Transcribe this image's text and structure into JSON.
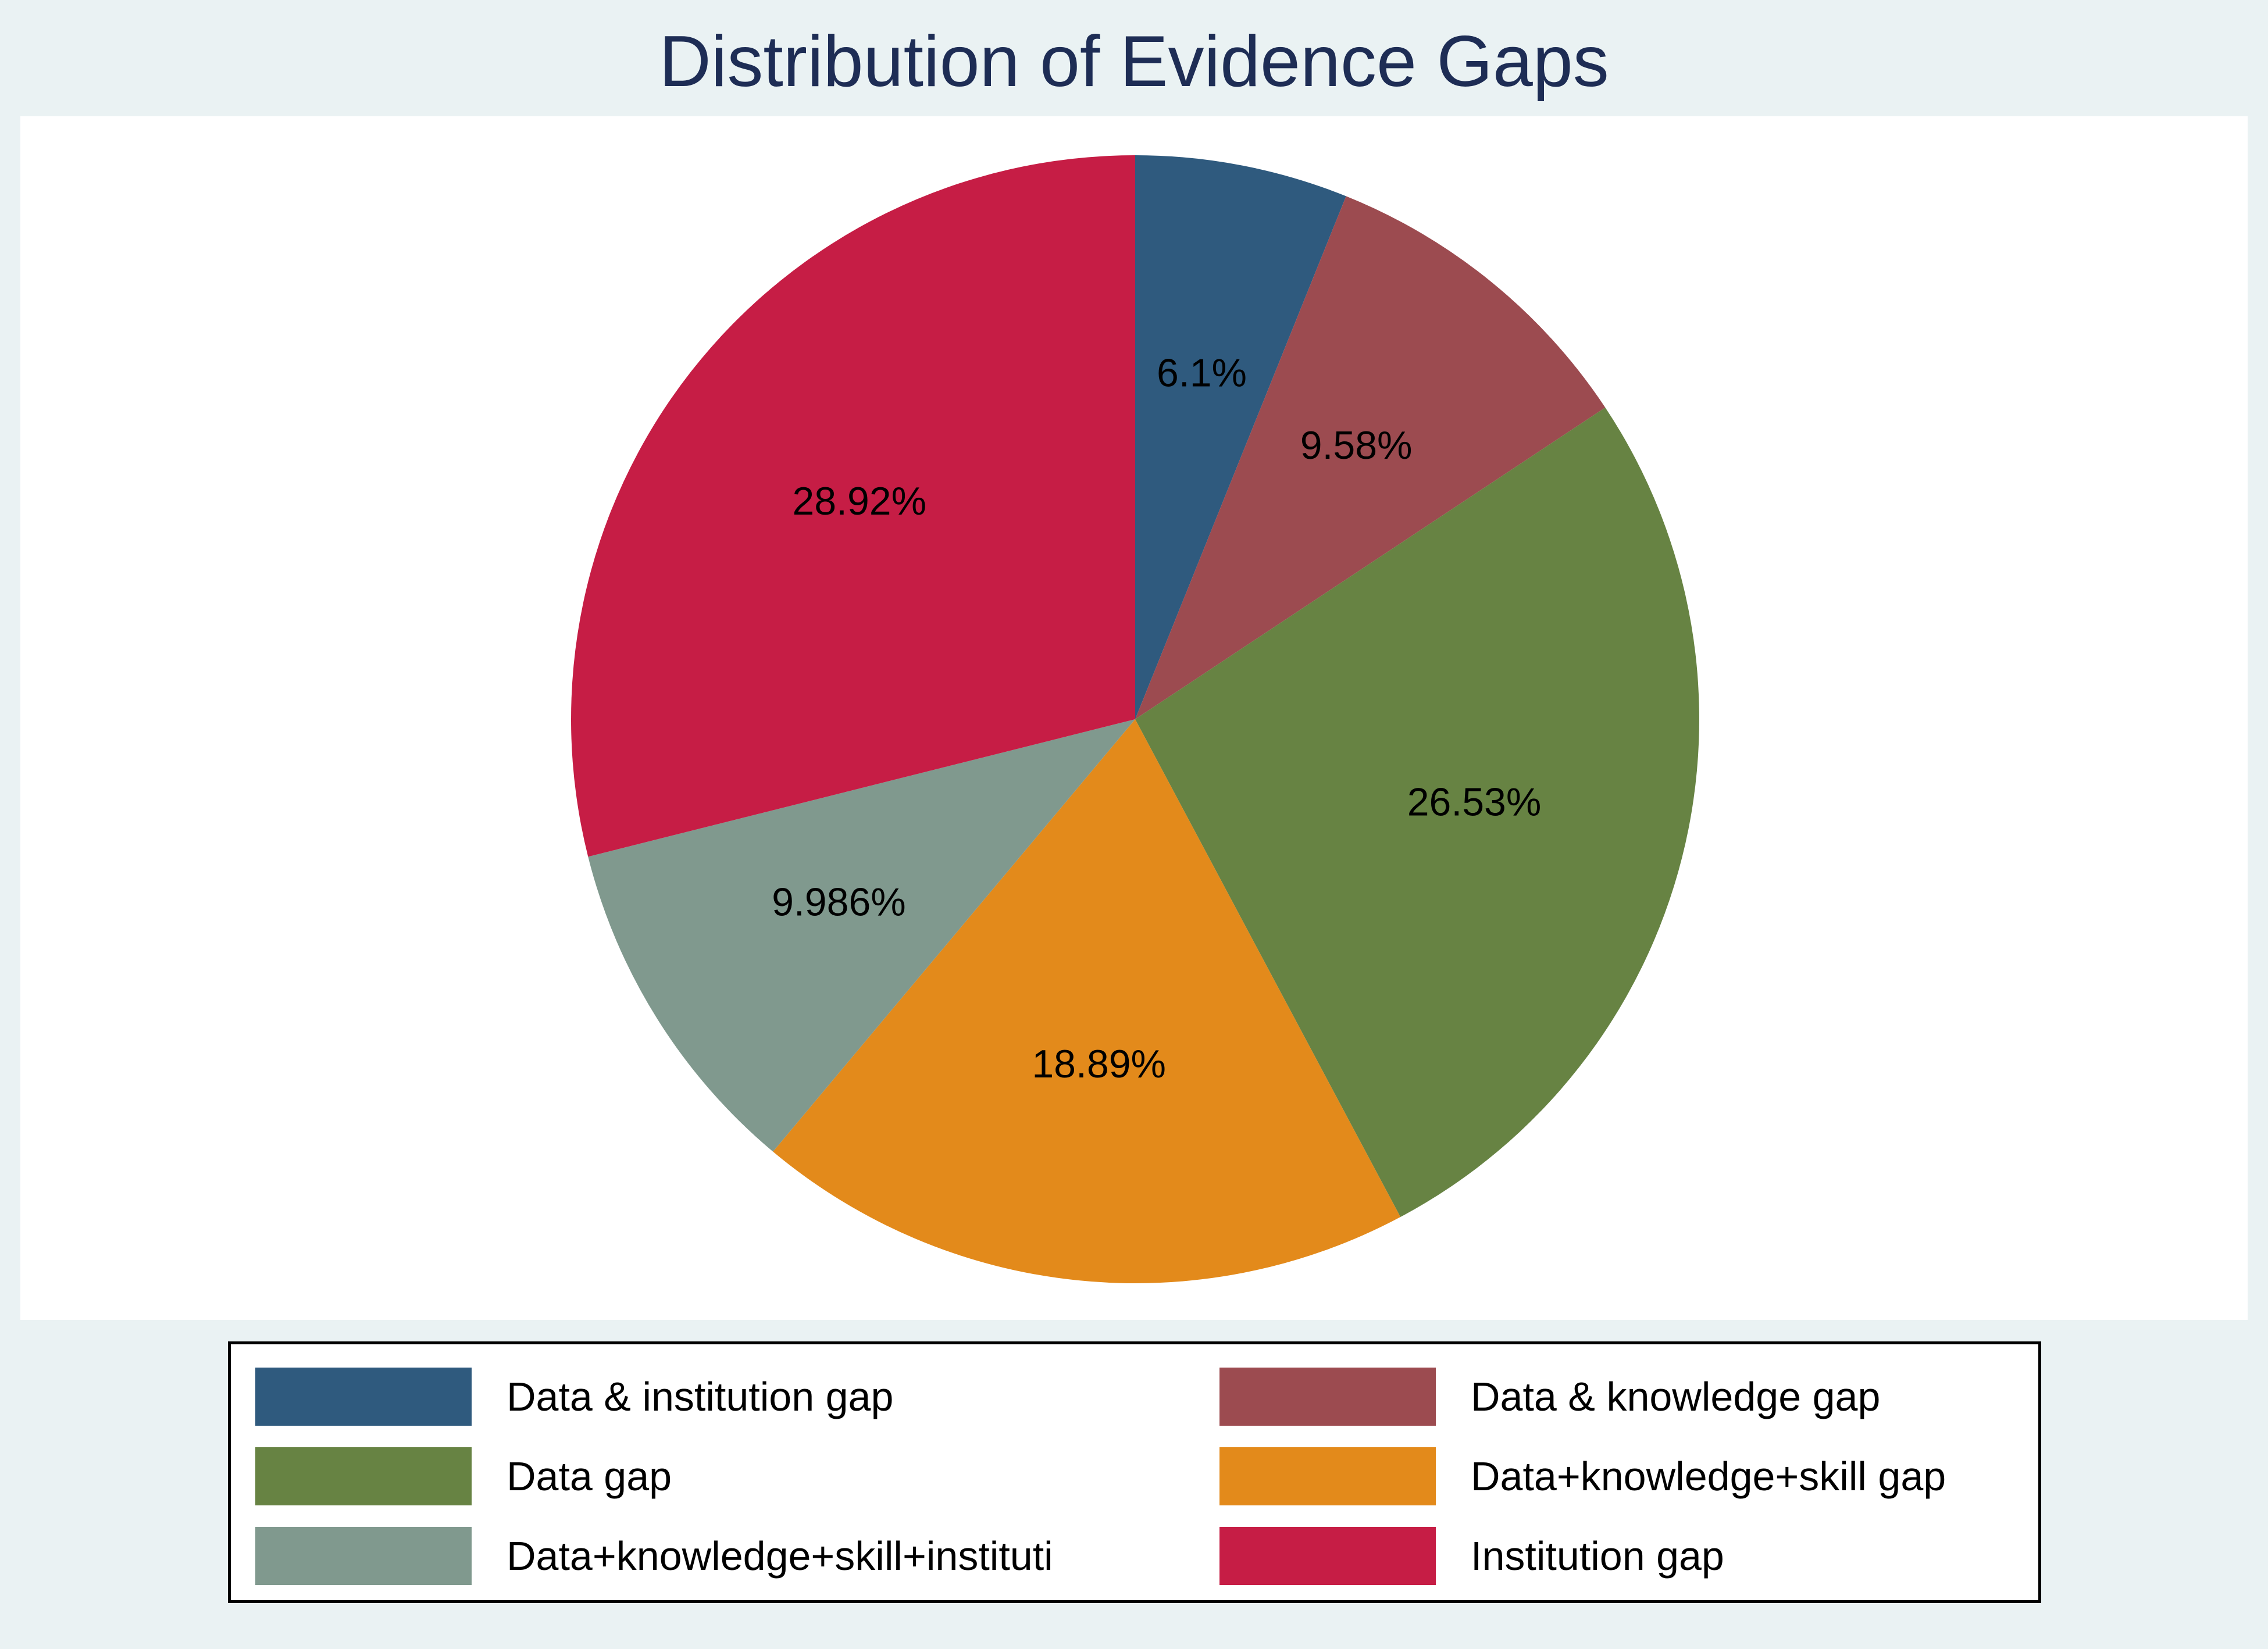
{
  "chart_data": {
    "type": "pie",
    "title": "Distribution of Evidence Gaps",
    "start": "12 o'clock, clockwise",
    "slices": [
      {
        "label": "Data & institution gap",
        "value": 6.1,
        "display": "6.1%",
        "color": "#2f5a7e"
      },
      {
        "label": "Data & knowledge gap",
        "value": 9.58,
        "display": "9.58%",
        "color": "#9c4b50"
      },
      {
        "label": "Data gap",
        "value": 26.53,
        "display": "26.53%",
        "color": "#678343"
      },
      {
        "label": "Data+knowledge+skill gap",
        "value": 18.89,
        "display": "18.89%",
        "color": "#e38a1b"
      },
      {
        "label": "Data+knowledge+skill+instituti",
        "value": 9.986,
        "display": "9.986%",
        "color": "#80998e"
      },
      {
        "label": "Institution gap",
        "value": 28.92,
        "display": "28.92%",
        "color": "#c61d45"
      }
    ],
    "legend_position": "bottom",
    "legend_columns": 2
  }
}
